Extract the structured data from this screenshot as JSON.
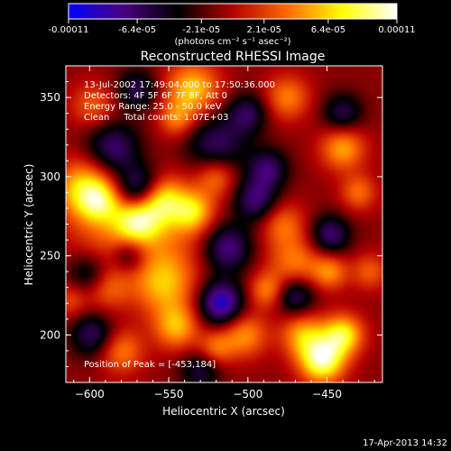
{
  "chart_data": {
    "type": "heatmap",
    "title": "Reconstructed RHESSI Image",
    "xlabel": "Heliocentric X (arcsec)",
    "ylabel": "Heliocentric Y (arcsec)",
    "xlim": [
      -615,
      -415
    ],
    "ylim": [
      170,
      370
    ],
    "x_ticks": [
      -600,
      -550,
      -500,
      -450
    ],
    "y_ticks": [
      200,
      250,
      300,
      350
    ],
    "colorbar": {
      "range": [
        -0.00011,
        0.00011
      ],
      "tick_values": [
        -0.00011,
        -6.4e-05,
        -2.1e-05,
        2.1e-05,
        6.4e-05,
        0.00011
      ],
      "tick_labels": [
        "-0.00011",
        "-6.4e-05",
        "-2.1e-05",
        "2.1e-05",
        "6.4e-05",
        "0.00011"
      ],
      "unit_label": "(photons cm⁻² s⁻¹ asec⁻²)",
      "colormap": [
        "#0000ff",
        "#4b0082",
        "#000000",
        "#b40000",
        "#ff6a00",
        "#ffff00",
        "#ffffff"
      ]
    },
    "annotations": [
      "13-Jul-2002 17:49:04.000 to 17:50:36.000",
      "Detectors: 4F 5F 6F 7F 8F, Att 0",
      "Energy Range: 25.0 - 50.0 keV",
      "Clean     Total counts: 1.07E+03"
    ],
    "peak_note": "Position of Peak = [-453,184]",
    "peak_position": [
      -453,
      184
    ],
    "blobs": [
      {
        "x": -555,
        "y": 270,
        "s": 22,
        "a": 0.35
      },
      {
        "x": -590,
        "y": 260,
        "s": 18,
        "a": 0.25
      },
      {
        "x": -603,
        "y": 292,
        "s": 13,
        "a": 0.7
      },
      {
        "x": -593,
        "y": 284,
        "s": 9,
        "a": 0.45
      },
      {
        "x": -570,
        "y": 273,
        "s": 10,
        "a": 0.75
      },
      {
        "x": -556,
        "y": 286,
        "s": 10,
        "a": 0.8
      },
      {
        "x": -535,
        "y": 278,
        "s": 9,
        "a": 0.55
      },
      {
        "x": -520,
        "y": 300,
        "s": 9,
        "a": 0.45
      },
      {
        "x": -598,
        "y": 345,
        "s": 10,
        "a": 0.35
      },
      {
        "x": -535,
        "y": 355,
        "s": 12,
        "a": 0.65
      },
      {
        "x": -545,
        "y": 336,
        "s": 8,
        "a": 0.4
      },
      {
        "x": -475,
        "y": 350,
        "s": 10,
        "a": 0.45
      },
      {
        "x": -440,
        "y": 318,
        "s": 10,
        "a": 0.55
      },
      {
        "x": -430,
        "y": 290,
        "s": 8,
        "a": 0.4
      },
      {
        "x": -478,
        "y": 270,
        "s": 10,
        "a": 0.4
      },
      {
        "x": -470,
        "y": 245,
        "s": 12,
        "a": 0.45
      },
      {
        "x": -448,
        "y": 240,
        "s": 8,
        "a": 0.45
      },
      {
        "x": -553,
        "y": 232,
        "s": 14,
        "a": 0.55
      },
      {
        "x": -590,
        "y": 230,
        "s": 10,
        "a": 0.4
      },
      {
        "x": -545,
        "y": 205,
        "s": 10,
        "a": 0.55
      },
      {
        "x": -520,
        "y": 192,
        "s": 8,
        "a": 0.4
      },
      {
        "x": -580,
        "y": 190,
        "s": 10,
        "a": 0.45
      },
      {
        "x": -502,
        "y": 200,
        "s": 10,
        "a": 0.5
      },
      {
        "x": -465,
        "y": 200,
        "s": 10,
        "a": 0.55
      },
      {
        "x": -453,
        "y": 184,
        "s": 10,
        "a": 0.95
      },
      {
        "x": -440,
        "y": 200,
        "s": 9,
        "a": 0.75
      },
      {
        "x": -488,
        "y": 228,
        "s": 8,
        "a": 0.45
      },
      {
        "x": -423,
        "y": 240,
        "s": 8,
        "a": 0.35
      },
      {
        "x": -612,
        "y": 222,
        "s": 8,
        "a": 0.3
      },
      {
        "x": -567,
        "y": 290,
        "s": 11,
        "a": -0.9
      },
      {
        "x": -585,
        "y": 318,
        "s": 12,
        "a": -0.55
      },
      {
        "x": -520,
        "y": 320,
        "s": 14,
        "a": -0.5
      },
      {
        "x": -495,
        "y": 285,
        "s": 10,
        "a": -0.55
      },
      {
        "x": -513,
        "y": 255,
        "s": 11,
        "a": -0.6
      },
      {
        "x": -517,
        "y": 220,
        "s": 10,
        "a": -0.8
      },
      {
        "x": -487,
        "y": 305,
        "s": 9,
        "a": -0.5
      },
      {
        "x": -470,
        "y": 225,
        "s": 9,
        "a": -0.55
      },
      {
        "x": -448,
        "y": 263,
        "s": 9,
        "a": -0.55
      },
      {
        "x": -440,
        "y": 340,
        "s": 9,
        "a": -0.45
      },
      {
        "x": -600,
        "y": 238,
        "s": 10,
        "a": -0.5
      },
      {
        "x": -575,
        "y": 250,
        "s": 8,
        "a": -0.45
      },
      {
        "x": -598,
        "y": 200,
        "s": 10,
        "a": -0.5
      },
      {
        "x": -570,
        "y": 355,
        "s": 9,
        "a": -0.45
      },
      {
        "x": -500,
        "y": 340,
        "s": 9,
        "a": -0.45
      },
      {
        "x": -530,
        "y": 177,
        "s": 9,
        "a": -0.4
      }
    ]
  },
  "footer": {
    "timestamp": "17-Apr-2013 14:32"
  }
}
